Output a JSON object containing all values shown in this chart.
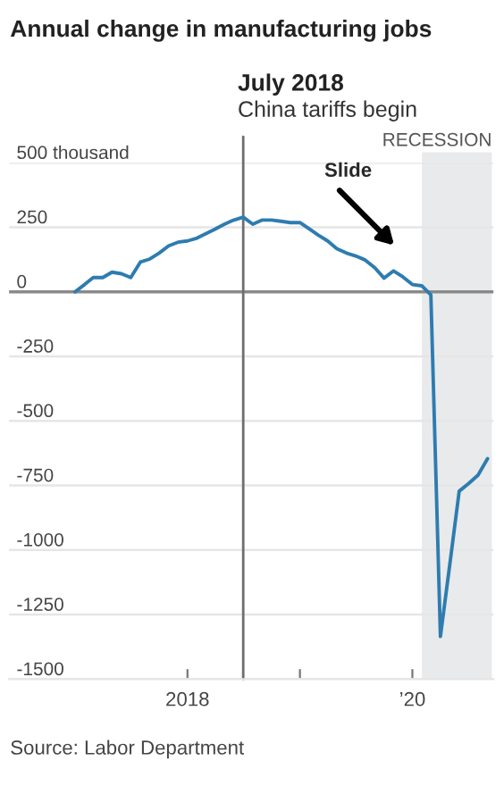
{
  "chart_data": {
    "type": "line",
    "title": "Annual change in manufacturing jobs",
    "x": [
      "2017-01",
      "2017-02",
      "2017-03",
      "2017-04",
      "2017-05",
      "2017-06",
      "2017-07",
      "2017-08",
      "2017-09",
      "2017-10",
      "2017-11",
      "2017-12",
      "2018-01",
      "2018-02",
      "2018-03",
      "2018-04",
      "2018-05",
      "2018-06",
      "2018-07",
      "2018-08",
      "2018-09",
      "2018-10",
      "2018-11",
      "2018-12",
      "2019-01",
      "2019-02",
      "2019-03",
      "2019-04",
      "2019-05",
      "2019-06",
      "2019-07",
      "2019-08",
      "2019-09",
      "2019-10",
      "2019-11",
      "2019-12",
      "2020-01",
      "2020-02",
      "2020-03",
      "2020-04",
      "2020-05",
      "2020-06",
      "2020-07",
      "2020-08",
      "2020-09"
    ],
    "series": [
      {
        "color": "#2e7cb0",
        "values": [
          0,
          28,
          55,
          55,
          76,
          70,
          55,
          115,
          127,
          150,
          178,
          192,
          197,
          208,
          225,
          243,
          262,
          278,
          289,
          262,
          278,
          278,
          273,
          268,
          268,
          243,
          220,
          197,
          167,
          150,
          139,
          123,
          93,
          53,
          81,
          58,
          28,
          23,
          -12,
          -1335,
          -1060,
          -772,
          -743,
          -710,
          -646
        ]
      }
    ],
    "xlim": [
      "2016-06-01",
      "2020-09-20"
    ],
    "xticks": [
      {
        "value": "2018-01",
        "label": "2018"
      },
      {
        "value": "2019-01",
        "label": null
      },
      {
        "value": "2020-01",
        "label": "’20"
      }
    ],
    "ylim": [
      -1500,
      500
    ],
    "yticks": [
      {
        "value": 500,
        "label": "500 thousand"
      },
      250,
      0,
      -250,
      -500,
      -750,
      -1000,
      -1250,
      -1500
    ],
    "grid": "y",
    "marker": "none",
    "line_style": "solid",
    "ref_lines": [
      {
        "axis": "y",
        "value": 0,
        "color": "#8a8a8a"
      },
      {
        "axis": "x",
        "value": "2018-07",
        "label": "July 2018",
        "color": "#6e6e6e"
      }
    ],
    "bands": [
      {
        "axis": "x",
        "from": "2020-02",
        "to": "2020-09-15",
        "label": "RECESSION",
        "color": "#e9eaec"
      }
    ],
    "annotations": [
      "China tariffs begin",
      "Slide",
      "Source: Labor Department"
    ]
  }
}
